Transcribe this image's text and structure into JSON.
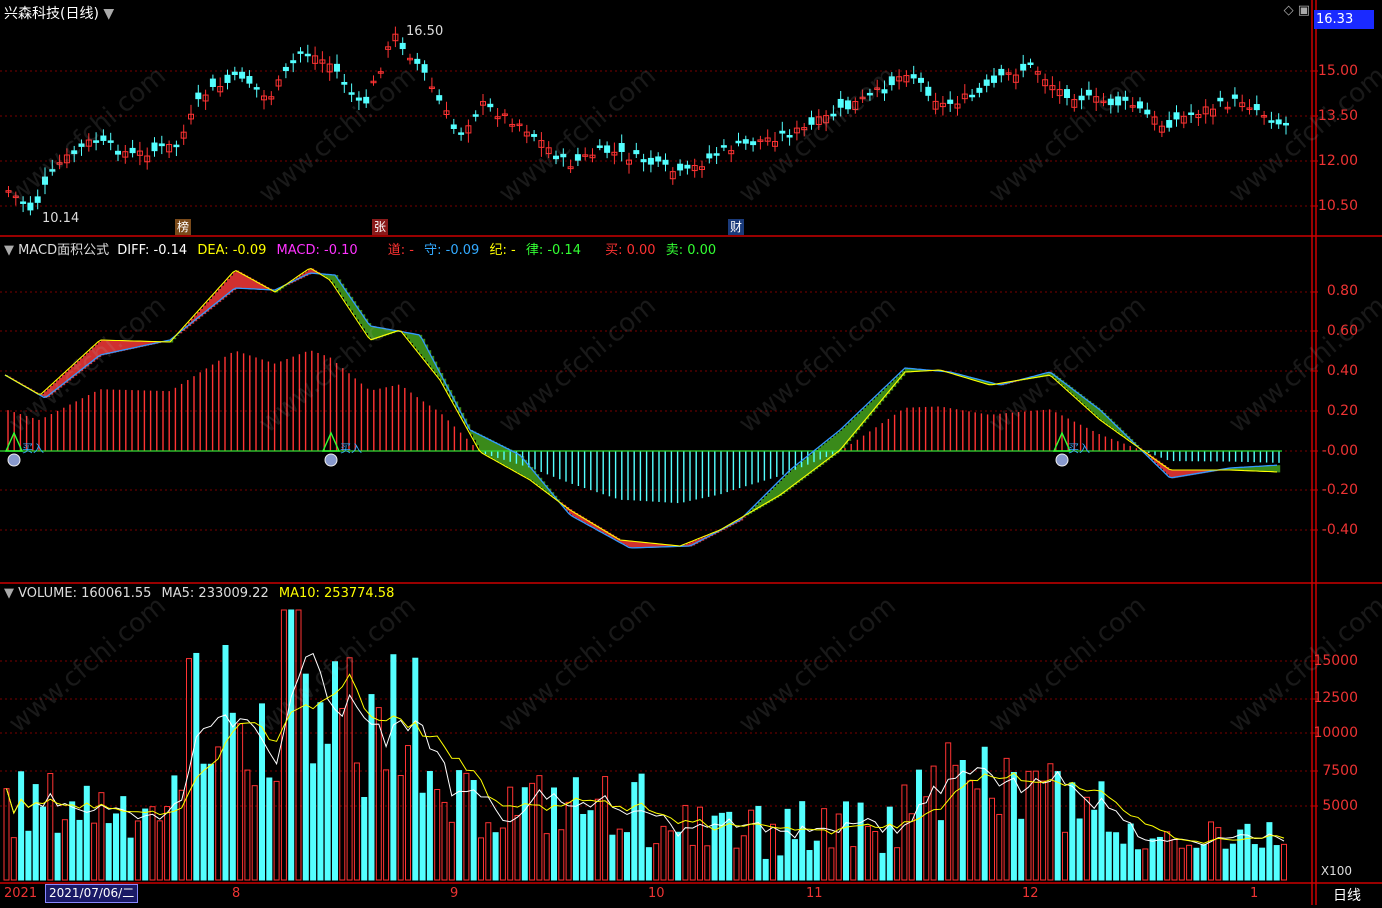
{
  "app": {
    "stock_title": "兴森科技(日线)",
    "current_price_tag": "16.33",
    "period_button": "日线",
    "date_badge": "2021/07/06/二",
    "year_label": "2021"
  },
  "price_panel": {
    "axis_labels": [
      "15.00",
      "13.50",
      "12.00",
      "10.50"
    ],
    "high_label": "16.50",
    "low_label": "10.14",
    "event_markers": [
      "榜",
      "张",
      "财"
    ]
  },
  "macd_panel": {
    "title": "MACD面积公式",
    "diff_label": "DIFF: -0.14",
    "dea_label": "DEA: -0.09",
    "macd_label": "MACD: -0.10",
    "dao_label": "道: -",
    "shou_label": "守: -0.09",
    "ji_label": "纪: -",
    "lv_label": "律: -0.14",
    "buy_label": "买: 0.00",
    "sell_label": "卖: 0.00",
    "axis_labels": [
      "0.80",
      "0.60",
      "0.40",
      "0.20",
      "-0.00",
      "-0.20",
      "-0.40"
    ],
    "signal_text": "买入"
  },
  "volume_panel": {
    "volume_label": "VOLUME: 160061.55",
    "ma5_label": "MA5: 233009.22",
    "ma10_label": "MA10: 253774.58",
    "axis_labels": [
      "15000",
      "12500",
      "10000",
      "7500",
      "5000"
    ],
    "unit_label": "X100"
  },
  "time_axis": {
    "month_labels": [
      "8",
      "9",
      "10",
      "11",
      "12",
      "1"
    ]
  },
  "watermark_text": "www.cfchi.com",
  "colors": {
    "up": "#ff3333",
    "down": "#54ffff",
    "diff_line": "#ffff00",
    "dea_line": "#3399ff",
    "area_red": "#d03030",
    "area_green": "#3a8a1a",
    "ma5": "#ffffff",
    "ma10": "#ffff00",
    "grid": "#7a0000",
    "frame": "#cc0000"
  }
}
